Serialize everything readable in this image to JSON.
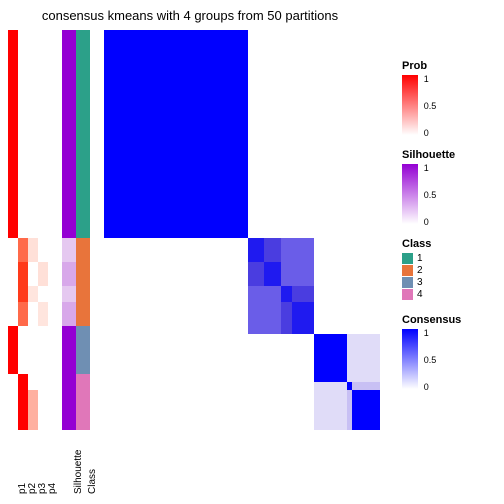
{
  "title": "consensus kmeans with 4 groups from 50 partitions",
  "title_fontsize": 13,
  "background_color": "#ffffff",
  "row_fractions": [
    0.52,
    0.06,
    0.06,
    0.04,
    0.06,
    0.12,
    0.04,
    0.1
  ],
  "annotation_columns": [
    {
      "id": "p1",
      "width": 10,
      "cells": [
        {
          "frac": 0.52,
          "color": "#ff0000"
        },
        {
          "frac": 0.06,
          "color": "#ffffff"
        },
        {
          "frac": 0.06,
          "color": "#ffffff"
        },
        {
          "frac": 0.04,
          "color": "#ffffff"
        },
        {
          "frac": 0.06,
          "color": "#ffffff"
        },
        {
          "frac": 0.12,
          "color": "#ff0000"
        },
        {
          "frac": 0.04,
          "color": "#ffffff"
        },
        {
          "frac": 0.1,
          "color": "#ffffff"
        }
      ]
    },
    {
      "id": "p2",
      "width": 10,
      "cells": [
        {
          "frac": 0.52,
          "color": "#ffffff"
        },
        {
          "frac": 0.06,
          "color": "#ff6a4a"
        },
        {
          "frac": 0.06,
          "color": "#ff3a1a"
        },
        {
          "frac": 0.04,
          "color": "#ff3a1a"
        },
        {
          "frac": 0.06,
          "color": "#ff6a4a"
        },
        {
          "frac": 0.12,
          "color": "#ffffff"
        },
        {
          "frac": 0.04,
          "color": "#ff0000"
        },
        {
          "frac": 0.1,
          "color": "#ff0000"
        }
      ]
    },
    {
      "id": "p3",
      "width": 10,
      "cells": [
        {
          "frac": 0.52,
          "color": "#ffffff"
        },
        {
          "frac": 0.06,
          "color": "#ffe0d8"
        },
        {
          "frac": 0.06,
          "color": "#ffffff"
        },
        {
          "frac": 0.04,
          "color": "#ffe5de"
        },
        {
          "frac": 0.06,
          "color": "#ffffff"
        },
        {
          "frac": 0.12,
          "color": "#ffffff"
        },
        {
          "frac": 0.04,
          "color": "#ffffff"
        },
        {
          "frac": 0.1,
          "color": "#ffb0a0"
        }
      ]
    },
    {
      "id": "p4",
      "width": 10,
      "cells": [
        {
          "frac": 0.52,
          "color": "#ffffff"
        },
        {
          "frac": 0.06,
          "color": "#ffffff"
        },
        {
          "frac": 0.06,
          "color": "#ffe0d8"
        },
        {
          "frac": 0.04,
          "color": "#ffffff"
        },
        {
          "frac": 0.06,
          "color": "#ffe5de"
        },
        {
          "frac": 0.12,
          "color": "#ffffff"
        },
        {
          "frac": 0.04,
          "color": "#ffffff"
        },
        {
          "frac": 0.1,
          "color": "#ffffff"
        }
      ]
    }
  ],
  "silhouette_col": {
    "id": "Silhouette",
    "width": 14,
    "cells": [
      {
        "frac": 0.52,
        "color": "#9400d3"
      },
      {
        "frac": 0.06,
        "color": "#e5c8f0"
      },
      {
        "frac": 0.06,
        "color": "#d8a8ea"
      },
      {
        "frac": 0.04,
        "color": "#e5c8f0"
      },
      {
        "frac": 0.06,
        "color": "#d8a8ea"
      },
      {
        "frac": 0.12,
        "color": "#9400d3"
      },
      {
        "frac": 0.04,
        "color": "#9400d3"
      },
      {
        "frac": 0.1,
        "color": "#9400d3"
      }
    ]
  },
  "class_col": {
    "id": "Class",
    "width": 14,
    "cells": [
      {
        "frac": 0.52,
        "color": "#2ca089"
      },
      {
        "frac": 0.06,
        "color": "#e8743b"
      },
      {
        "frac": 0.06,
        "color": "#e8743b"
      },
      {
        "frac": 0.04,
        "color": "#e8743b"
      },
      {
        "frac": 0.06,
        "color": "#e8743b"
      },
      {
        "frac": 0.12,
        "color": "#6f8fb3"
      },
      {
        "frac": 0.04,
        "color": "#e077b9"
      },
      {
        "frac": 0.1,
        "color": "#e077b9"
      }
    ]
  },
  "heatmap": {
    "background": "#ffffff",
    "blocks": [
      {
        "r0": 0.0,
        "r1": 0.52,
        "c0": 0.0,
        "c1": 0.52,
        "color": "#0000ff"
      },
      {
        "r0": 0.52,
        "r1": 0.76,
        "c0": 0.52,
        "c1": 0.76,
        "color": "#4a3de0"
      },
      {
        "r0": 0.52,
        "r1": 0.58,
        "c0": 0.52,
        "c1": 0.58,
        "color": "#1f1af0"
      },
      {
        "r0": 0.58,
        "r1": 0.64,
        "c0": 0.58,
        "c1": 0.64,
        "color": "#1f1af0"
      },
      {
        "r0": 0.64,
        "r1": 0.68,
        "c0": 0.64,
        "c1": 0.68,
        "color": "#1f1af0"
      },
      {
        "r0": 0.68,
        "r1": 0.76,
        "c0": 0.68,
        "c1": 0.76,
        "color": "#1f1af0"
      },
      {
        "r0": 0.52,
        "r1": 0.64,
        "c0": 0.64,
        "c1": 0.76,
        "color": "#6a5de8"
      },
      {
        "r0": 0.64,
        "r1": 0.76,
        "c0": 0.52,
        "c1": 0.64,
        "color": "#6a5de8"
      },
      {
        "r0": 0.76,
        "r1": 0.88,
        "c0": 0.76,
        "c1": 0.88,
        "color": "#0000ff"
      },
      {
        "r0": 0.88,
        "r1": 1.0,
        "c0": 0.88,
        "c1": 1.0,
        "color": "#c8c0f4"
      },
      {
        "r0": 0.9,
        "r1": 1.0,
        "c0": 0.9,
        "c1": 1.0,
        "color": "#0000ff"
      },
      {
        "r0": 0.88,
        "r1": 0.9,
        "c0": 0.88,
        "c1": 0.9,
        "color": "#0000ff"
      },
      {
        "r0": 0.76,
        "r1": 0.88,
        "c0": 0.88,
        "c1": 1.0,
        "color": "#e0dcf8"
      },
      {
        "r0": 0.88,
        "r1": 1.0,
        "c0": 0.76,
        "c1": 0.88,
        "color": "#e0dcf8"
      }
    ]
  },
  "x_axis_labels": [
    "p1",
    "p2",
    "p3",
    "p4",
    "Silhouette",
    "Class"
  ],
  "legends": {
    "prob": {
      "title": "Prob",
      "gradient_top": "#ff0000",
      "gradient_bottom": "#ffffff",
      "ticks": [
        {
          "pos": 0,
          "label": "1"
        },
        {
          "pos": 0.5,
          "label": "0.5"
        },
        {
          "pos": 1,
          "label": "0"
        }
      ]
    },
    "silhouette": {
      "title": "Silhouette",
      "gradient_top": "#9400d3",
      "gradient_bottom": "#ffffff",
      "ticks": [
        {
          "pos": 0,
          "label": "1"
        },
        {
          "pos": 0.5,
          "label": "0.5"
        },
        {
          "pos": 1,
          "label": "0"
        }
      ]
    },
    "class": {
      "title": "Class",
      "items": [
        {
          "label": "1",
          "color": "#2ca089"
        },
        {
          "label": "2",
          "color": "#e8743b"
        },
        {
          "label": "3",
          "color": "#6f8fb3"
        },
        {
          "label": "4",
          "color": "#e077b9"
        }
      ]
    },
    "consensus": {
      "title": "Consensus",
      "gradient_top": "#0000ff",
      "gradient_bottom": "#ffffff",
      "ticks": [
        {
          "pos": 0,
          "label": "1"
        },
        {
          "pos": 0.5,
          "label": "0.5"
        },
        {
          "pos": 1,
          "label": "0"
        }
      ]
    }
  }
}
